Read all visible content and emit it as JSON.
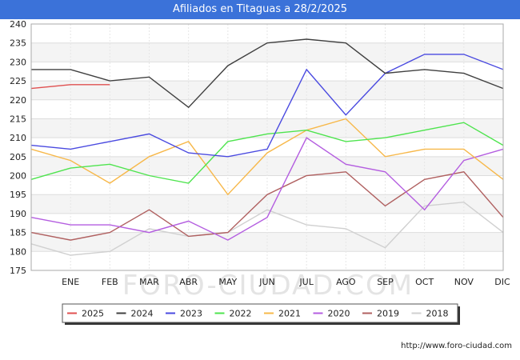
{
  "header": {
    "title": "Afiliados en Titaguas a 28/2/2025"
  },
  "footer": {
    "url": "http://www.foro-ciudad.com"
  },
  "watermark": "FORO-CIUDAD.COM",
  "chart_data": {
    "type": "line",
    "title": "Afiliados en Titaguas a 28/2/2025",
    "categories": [
      "",
      "ENE",
      "FEB",
      "MAR",
      "ABR",
      "MAY",
      "JUN",
      "JUL",
      "AGO",
      "SEP",
      "OCT",
      "NOV",
      "DIC"
    ],
    "ylim": [
      175,
      240
    ],
    "yticks": [
      175,
      180,
      185,
      190,
      195,
      200,
      205,
      210,
      215,
      220,
      225,
      230,
      235,
      240
    ],
    "grid": true,
    "legend_position": "bottom-center",
    "series": [
      {
        "name": "2025",
        "color": "#e05050",
        "values": [
          223,
          224,
          224,
          null,
          null,
          null,
          null,
          null,
          null,
          null,
          null,
          null,
          null
        ]
      },
      {
        "name": "2024",
        "color": "#404040",
        "values": [
          228,
          228,
          225,
          226,
          218,
          229,
          235,
          236,
          235,
          227,
          228,
          227,
          223
        ]
      },
      {
        "name": "2023",
        "color": "#4a4ae0",
        "values": [
          208,
          207,
          209,
          211,
          206,
          205,
          207,
          228,
          216,
          227,
          232,
          232,
          228
        ]
      },
      {
        "name": "2022",
        "color": "#4ee44e",
        "values": [
          199,
          202,
          203,
          200,
          198,
          209,
          211,
          212,
          209,
          210,
          212,
          214,
          208
        ]
      },
      {
        "name": "2021",
        "color": "#f7b84a",
        "values": [
          207,
          204,
          198,
          205,
          209,
          195,
          206,
          212,
          215,
          205,
          207,
          207,
          199
        ]
      },
      {
        "name": "2020",
        "color": "#b45ee0",
        "values": [
          189,
          187,
          187,
          185,
          188,
          183,
          189,
          210,
          203,
          201,
          191,
          204,
          207
        ]
      },
      {
        "name": "2019",
        "color": "#b06060",
        "values": [
          185,
          183,
          185,
          191,
          184,
          185,
          195,
          200,
          201,
          192,
          199,
          201,
          189
        ]
      },
      {
        "name": "2018",
        "color": "#d0d0d0",
        "values": [
          182,
          179,
          180,
          186,
          184,
          185,
          191,
          187,
          186,
          181,
          192,
          193,
          185
        ]
      }
    ]
  }
}
